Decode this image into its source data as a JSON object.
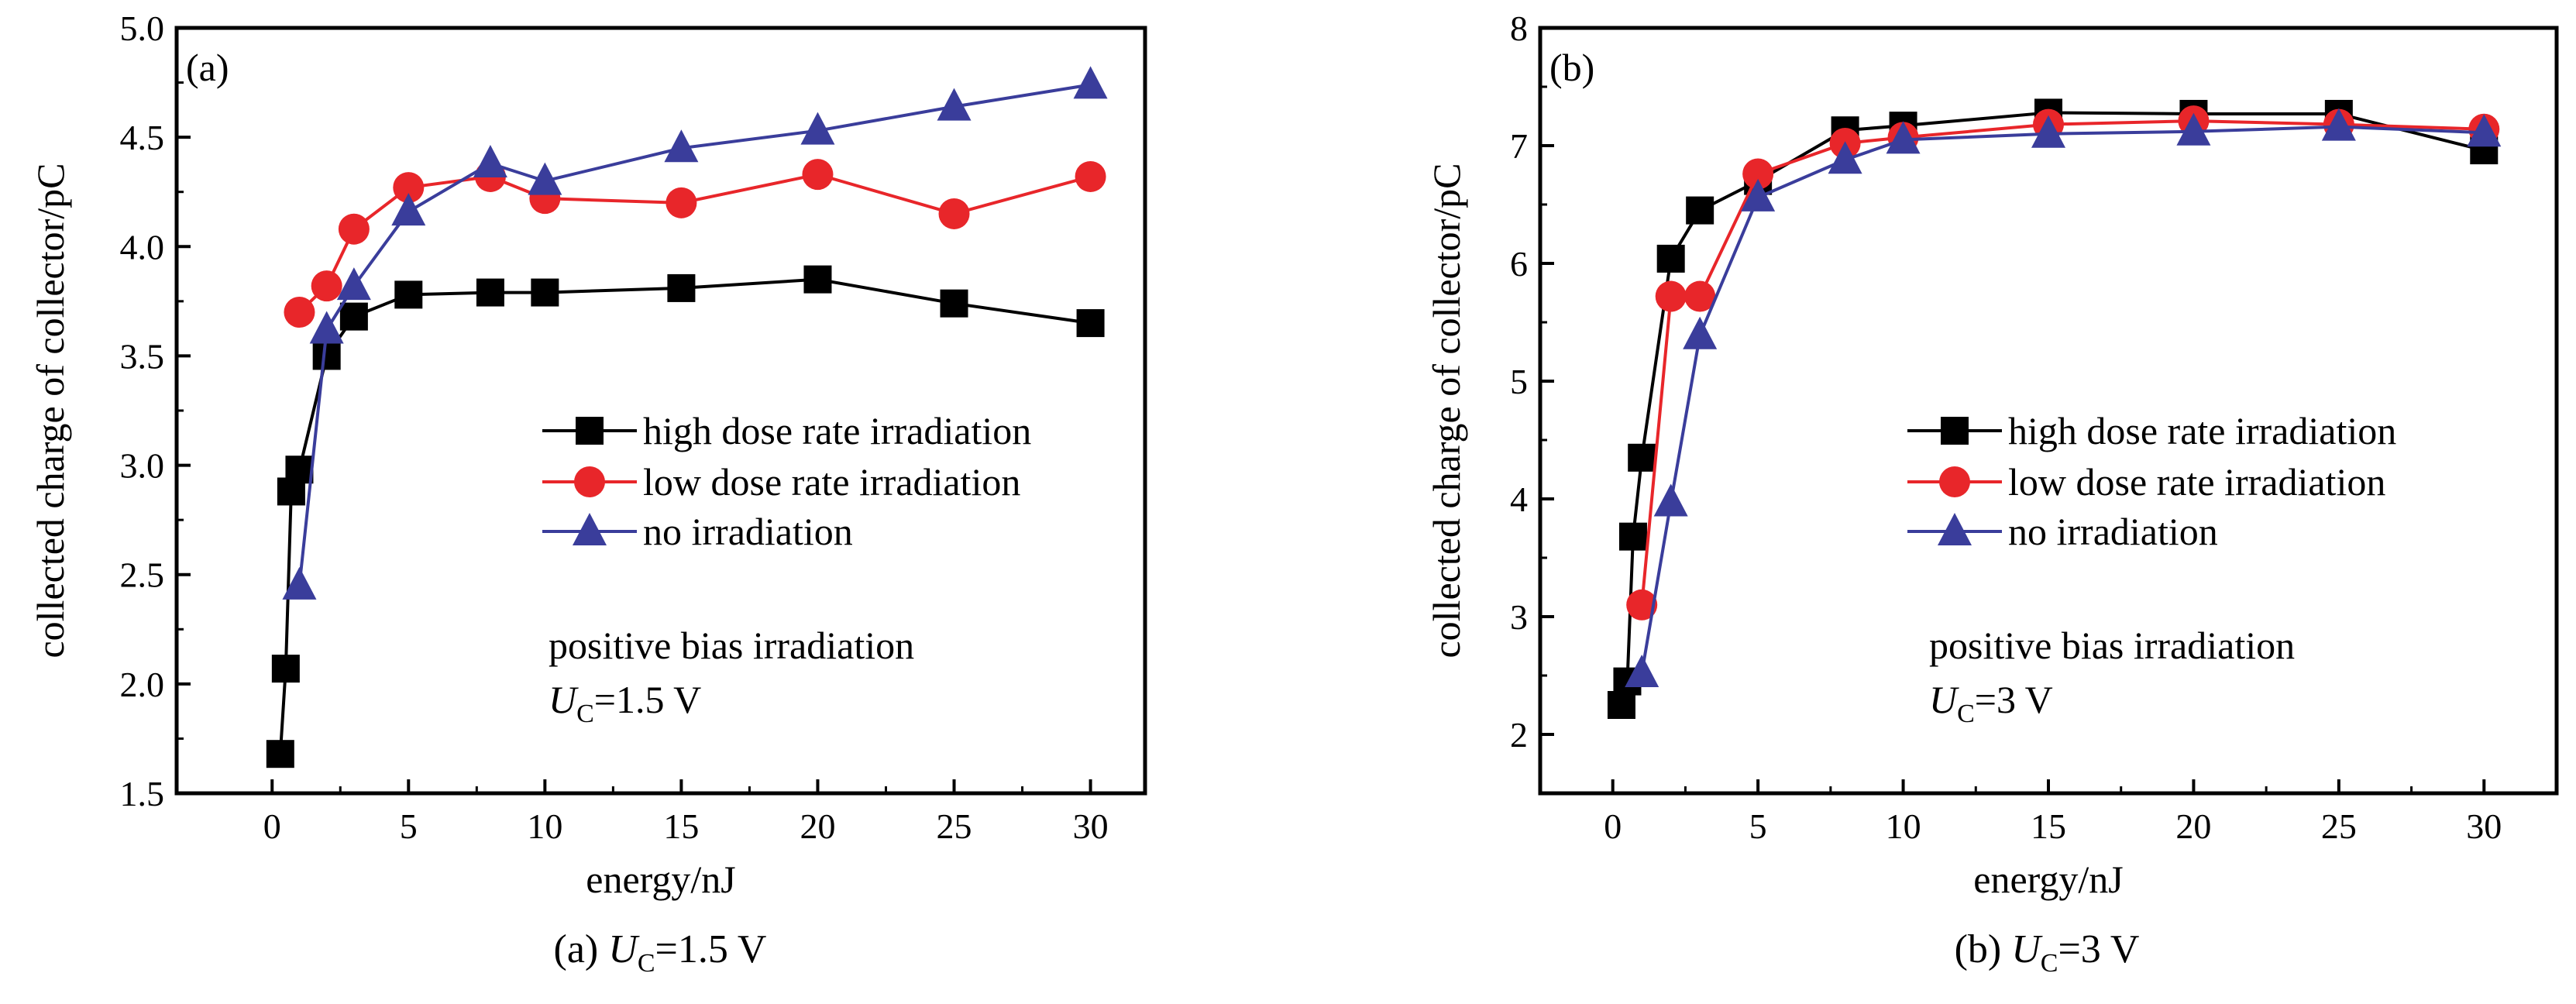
{
  "chart_data": [
    {
      "type": "line",
      "panel_label": "(a)",
      "xlabel": "energy/nJ",
      "ylabel": "collected charge of collector/pC",
      "xlim": [
        -3.5,
        32
      ],
      "ylim": [
        1.5,
        5.0
      ],
      "x_ticks": [
        0,
        5,
        10,
        15,
        20,
        25,
        30
      ],
      "y_ticks": [
        1.5,
        2.0,
        2.5,
        3.0,
        3.5,
        4.0,
        4.5,
        5.0
      ],
      "x_tick_labels": [
        "0",
        "5",
        "10",
        "15",
        "20",
        "25",
        "30"
      ],
      "y_tick_labels": [
        "1.5",
        "2.0",
        "2.5",
        "3.0",
        "3.5",
        "4.0",
        "4.5",
        "5.0"
      ],
      "legend_position": "center-right",
      "annotation": {
        "text": "positive bias irradiation",
        "u_symbol": "U",
        "u_sub": "C",
        "u_value": "=1.5 V"
      },
      "caption": {
        "prefix": "(a) ",
        "u_symbol": "U",
        "u_sub": "C",
        "u_value": "=1.5 V"
      },
      "series": [
        {
          "name": "high dose rate irradiation",
          "marker": "square",
          "color": "#000000",
          "x": [
            0.3,
            0.5,
            0.7,
            1,
            2,
            3,
            5,
            8,
            10,
            15,
            20,
            25,
            30
          ],
          "y": [
            1.68,
            2.07,
            2.88,
            2.98,
            3.5,
            3.68,
            3.78,
            3.79,
            3.79,
            3.81,
            3.85,
            3.74,
            3.65
          ]
        },
        {
          "name": "low dose rate irradiation",
          "marker": "circle",
          "color": "#e8262a",
          "x": [
            1,
            2,
            3,
            5,
            8,
            10,
            15,
            20,
            25,
            30
          ],
          "y": [
            3.7,
            3.82,
            4.08,
            4.27,
            4.32,
            4.22,
            4.2,
            4.33,
            4.15,
            4.32
          ]
        },
        {
          "name": "no irradiation",
          "marker": "triangle",
          "color": "#3a3d9b",
          "x": [
            1,
            2,
            3,
            5,
            8,
            10,
            15,
            20,
            25,
            30
          ],
          "y": [
            2.45,
            3.62,
            3.82,
            4.16,
            4.38,
            4.3,
            4.45,
            4.53,
            4.64,
            4.74
          ]
        }
      ]
    },
    {
      "type": "line",
      "panel_label": "(b)",
      "xlabel": "energy/nJ",
      "ylabel": "collected charge of collector/pC",
      "xlim": [
        -2.5,
        32.5
      ],
      "ylim": [
        1.5,
        8.0
      ],
      "x_ticks": [
        0,
        5,
        10,
        15,
        20,
        25,
        30
      ],
      "y_ticks": [
        2,
        3,
        4,
        5,
        6,
        7,
        8
      ],
      "x_tick_labels": [
        "0",
        "5",
        "10",
        "15",
        "20",
        "25",
        "30"
      ],
      "y_tick_labels": [
        "2",
        "3",
        "4",
        "5",
        "6",
        "7",
        "8"
      ],
      "legend_position": "center-right",
      "annotation": {
        "text": "positive bias irradiation",
        "u_symbol": "U",
        "u_sub": "C",
        "u_value": "=3 V"
      },
      "caption": {
        "prefix": "(b) ",
        "u_symbol": "U",
        "u_sub": "C",
        "u_value": "=3 V"
      },
      "series": [
        {
          "name": "high dose rate irradiation",
          "marker": "square",
          "color": "#000000",
          "x": [
            0.3,
            0.5,
            0.7,
            1,
            2,
            3,
            5,
            8,
            10,
            15,
            20,
            25,
            30
          ],
          "y": [
            2.25,
            2.45,
            3.68,
            4.35,
            6.04,
            6.45,
            6.7,
            7.13,
            7.17,
            7.28,
            7.27,
            7.27,
            6.96
          ]
        },
        {
          "name": "low dose rate irradiation",
          "marker": "circle",
          "color": "#e8262a",
          "x": [
            1,
            2,
            3,
            5,
            8,
            10,
            15,
            20,
            25,
            30
          ],
          "y": [
            3.1,
            5.72,
            5.72,
            6.76,
            7.02,
            7.07,
            7.18,
            7.21,
            7.18,
            7.14
          ]
        },
        {
          "name": "no irradiation",
          "marker": "triangle",
          "color": "#3a3d9b",
          "x": [
            1,
            2,
            3,
            5,
            8,
            10,
            15,
            20,
            25,
            30
          ],
          "y": [
            2.52,
            3.97,
            5.39,
            6.56,
            6.88,
            7.05,
            7.1,
            7.12,
            7.16,
            7.11
          ]
        }
      ]
    }
  ]
}
